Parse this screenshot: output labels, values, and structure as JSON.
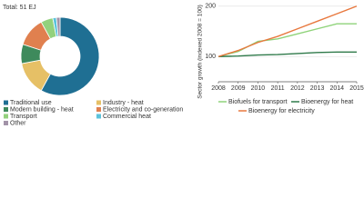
{
  "chart_data": [
    {
      "type": "pie",
      "title": "Total: 51 EJ",
      "donut": true,
      "categories": [
        "Traditional use",
        "Industry - heat",
        "Modern building - heat",
        "Electricity and co-generation",
        "Transport",
        "Commercial heat",
        "Other"
      ],
      "values": [
        58,
        14,
        8,
        12,
        5,
        1.5,
        1.5
      ],
      "colors": [
        "#1f6f93",
        "#e6c066",
        "#3e8a5c",
        "#e0804f",
        "#93d17d",
        "#5bc3dc",
        "#a293a8"
      ]
    },
    {
      "type": "line",
      "ylabel": "Sector growth (indexed 2008 = 100)",
      "x": [
        2008,
        2009,
        2010,
        2011,
        2012,
        2013,
        2014,
        2015
      ],
      "xlim": [
        2008,
        2015
      ],
      "ylim": [
        50,
        205
      ],
      "yticks": [
        100,
        200
      ],
      "grid": true,
      "series": [
        {
          "name": "Biofuels for transport",
          "color": "#8fd37a",
          "values": [
            100,
            110,
            130,
            135,
            145,
            155,
            165,
            165
          ]
        },
        {
          "name": "Bioenergy for heat",
          "color": "#2f7a4a",
          "values": [
            100,
            101,
            103,
            104,
            106,
            108,
            109,
            109
          ]
        },
        {
          "name": "Bioenergy for electricity",
          "color": "#e8783e",
          "values": [
            100,
            112,
            128,
            140,
            155,
            170,
            185,
            200
          ]
        }
      ]
    }
  ]
}
